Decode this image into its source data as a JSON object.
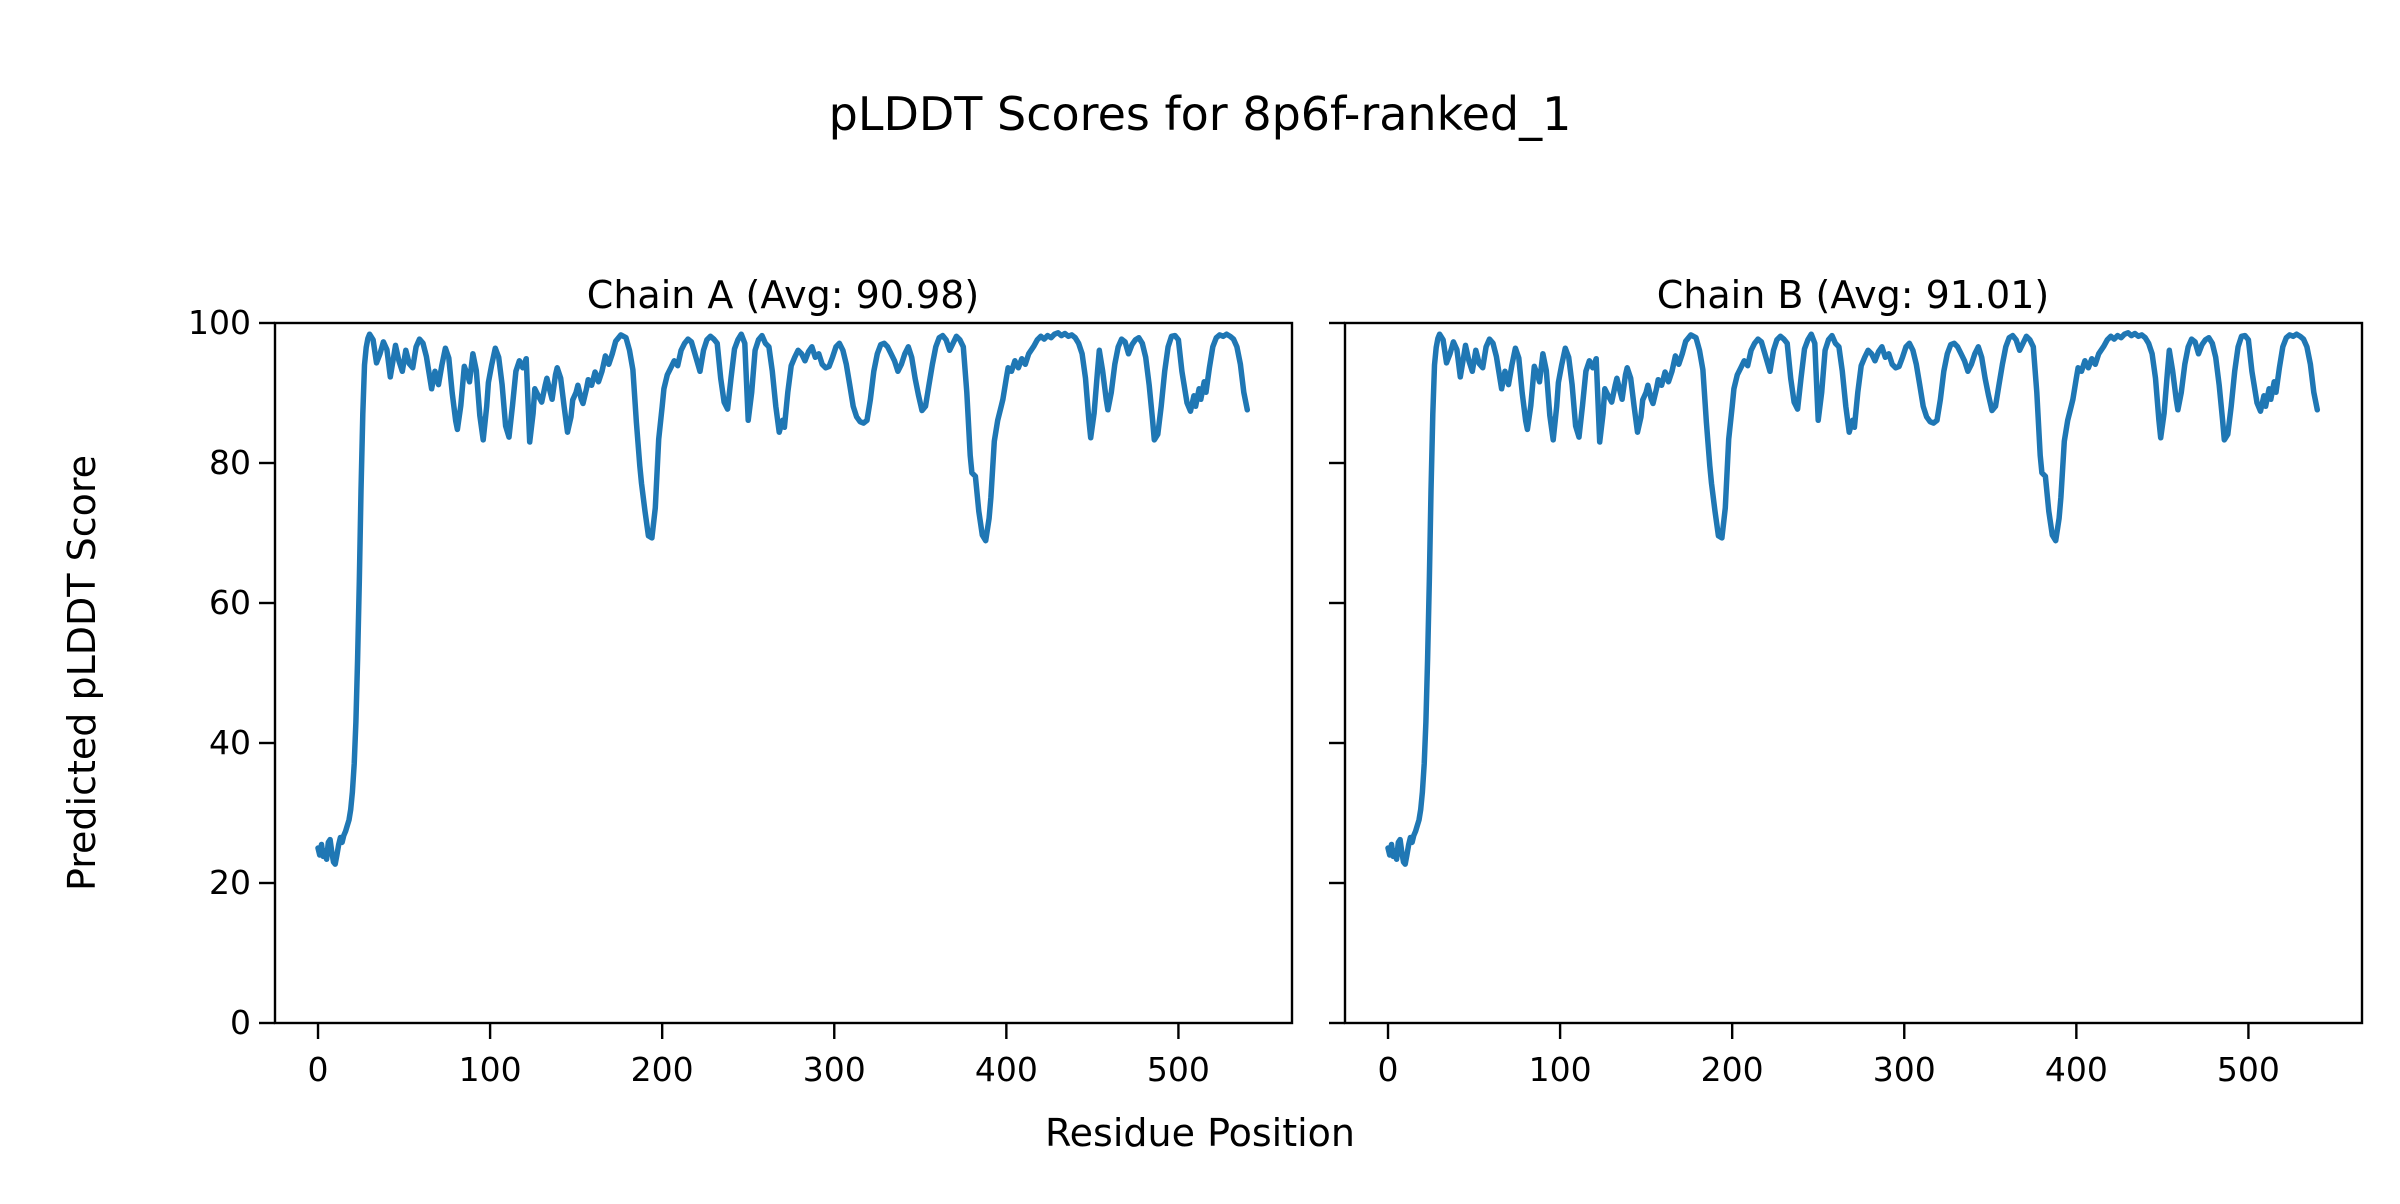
{
  "chart_data": {
    "type": "line",
    "suptitle": "pLDDT Scores for 8p6f-ranked_1",
    "xlabel": "Residue Position",
    "ylabel": "Predicted pLDDT Score",
    "xlim": [
      -25,
      566
    ],
    "ylim": [
      0,
      100
    ],
    "xticks": [
      0,
      100,
      200,
      300,
      400,
      500
    ],
    "yticks": [
      0,
      20,
      40,
      60,
      80,
      100
    ],
    "grid": false,
    "legend_position": "none",
    "line_color": "#1f77b4",
    "axis_color": "#000000",
    "background_color": "#ffffff",
    "subplots": [
      {
        "id": "chain-a",
        "title": "Chain A (Avg: 90.98)",
        "avg": 90.98
      },
      {
        "id": "chain-b",
        "title": "Chain B (Avg: 91.01)",
        "avg": 91.01
      }
    ],
    "points_note": "shared pLDDT profile [residue, score], drawn in both subplots",
    "points": [
      [
        0,
        25.0
      ],
      [
        1,
        24.0
      ],
      [
        2,
        25.5
      ],
      [
        3,
        23.8
      ],
      [
        4,
        24.6
      ],
      [
        5,
        23.4
      ],
      [
        6,
        25.8
      ],
      [
        7,
        26.2
      ],
      [
        8,
        24.4
      ],
      [
        9,
        23.0
      ],
      [
        10,
        22.7
      ],
      [
        11,
        24.0
      ],
      [
        12,
        25.5
      ],
      [
        13,
        26.5
      ],
      [
        14,
        25.8
      ],
      [
        15,
        26.8
      ],
      [
        16,
        27.4
      ],
      [
        17,
        28.2
      ],
      [
        18,
        29.0
      ],
      [
        19,
        30.5
      ],
      [
        20,
        33.0
      ],
      [
        21,
        37.0
      ],
      [
        22,
        43.0
      ],
      [
        23,
        52.0
      ],
      [
        24,
        63.0
      ],
      [
        25,
        76.0
      ],
      [
        26,
        87.0
      ],
      [
        27,
        94.0
      ],
      [
        28,
        96.5
      ],
      [
        29,
        97.8
      ],
      [
        30,
        98.4
      ],
      [
        32,
        97.6
      ],
      [
        34,
        94.3
      ],
      [
        36,
        95.6
      ],
      [
        38,
        97.3
      ],
      [
        40,
        96.2
      ],
      [
        42,
        92.3
      ],
      [
        44,
        95.2
      ],
      [
        45,
        96.8
      ],
      [
        47,
        94.6
      ],
      [
        49,
        93.1
      ],
      [
        51,
        96.1
      ],
      [
        53,
        94.2
      ],
      [
        55,
        93.6
      ],
      [
        57,
        96.6
      ],
      [
        59,
        97.7
      ],
      [
        61,
        97.1
      ],
      [
        63,
        95.2
      ],
      [
        66,
        90.6
      ],
      [
        68,
        93.1
      ],
      [
        70,
        91.2
      ],
      [
        72,
        94.0
      ],
      [
        74,
        96.4
      ],
      [
        76,
        95.0
      ],
      [
        78,
        90.0
      ],
      [
        80,
        86.0
      ],
      [
        81,
        84.8
      ],
      [
        83,
        88.2
      ],
      [
        85,
        93.8
      ],
      [
        87,
        92.5
      ],
      [
        88,
        91.6
      ],
      [
        90,
        95.6
      ],
      [
        92,
        93.2
      ],
      [
        94,
        86.8
      ],
      [
        96,
        83.3
      ],
      [
        98,
        88.1
      ],
      [
        99,
        91.5
      ],
      [
        101,
        94.1
      ],
      [
        103,
        96.4
      ],
      [
        105,
        95.1
      ],
      [
        107,
        91.2
      ],
      [
        109,
        85.3
      ],
      [
        111,
        83.7
      ],
      [
        113,
        88.2
      ],
      [
        115,
        93.1
      ],
      [
        117,
        94.6
      ],
      [
        119,
        93.6
      ],
      [
        121,
        94.9
      ],
      [
        123,
        83.0
      ],
      [
        125,
        87.1
      ],
      [
        126,
        90.6
      ],
      [
        128,
        89.6
      ],
      [
        130,
        88.7
      ],
      [
        132,
        91.1
      ],
      [
        133,
        92.1
      ],
      [
        135,
        90.1
      ],
      [
        136,
        89.1
      ],
      [
        138,
        92.6
      ],
      [
        139,
        93.6
      ],
      [
        141,
        92.1
      ],
      [
        143,
        88.1
      ],
      [
        145,
        84.4
      ],
      [
        147,
        86.6
      ],
      [
        148,
        89.0
      ],
      [
        150,
        90.1
      ],
      [
        151,
        91.1
      ],
      [
        153,
        89.1
      ],
      [
        154,
        88.5
      ],
      [
        156,
        90.6
      ],
      [
        157,
        91.9
      ],
      [
        159,
        91.1
      ],
      [
        161,
        93.0
      ],
      [
        163,
        91.6
      ],
      [
        165,
        93.1
      ],
      [
        167,
        95.3
      ],
      [
        169,
        94.1
      ],
      [
        171,
        95.6
      ],
      [
        173,
        97.4
      ],
      [
        176,
        98.3
      ],
      [
        179,
        97.9
      ],
      [
        181,
        96.1
      ],
      [
        183,
        93.3
      ],
      [
        185,
        85.8
      ],
      [
        187,
        79.6
      ],
      [
        188,
        77.1
      ],
      [
        190,
        73.1
      ],
      [
        192,
        69.6
      ],
      [
        194,
        69.3
      ],
      [
        196,
        73.6
      ],
      [
        198,
        83.4
      ],
      [
        200,
        88.1
      ],
      [
        201,
        90.6
      ],
      [
        203,
        92.6
      ],
      [
        205,
        93.6
      ],
      [
        207,
        94.6
      ],
      [
        209,
        93.9
      ],
      [
        211,
        96.1
      ],
      [
        213,
        97.1
      ],
      [
        215,
        97.7
      ],
      [
        217,
        97.3
      ],
      [
        219,
        95.6
      ],
      [
        222,
        93.1
      ],
      [
        224,
        96.1
      ],
      [
        226,
        97.6
      ],
      [
        228,
        98.1
      ],
      [
        230,
        97.7
      ],
      [
        232,
        97.1
      ],
      [
        234,
        92.1
      ],
      [
        236,
        88.7
      ],
      [
        238,
        87.7
      ],
      [
        240,
        92.1
      ],
      [
        242,
        96.3
      ],
      [
        244,
        97.6
      ],
      [
        246,
        98.4
      ],
      [
        248,
        97.1
      ],
      [
        250,
        86.1
      ],
      [
        252,
        90.1
      ],
      [
        254,
        96.1
      ],
      [
        256,
        97.6
      ],
      [
        258,
        98.2
      ],
      [
        260,
        97.1
      ],
      [
        262,
        96.6
      ],
      [
        264,
        93.1
      ],
      [
        266,
        88.1
      ],
      [
        268,
        84.4
      ],
      [
        270,
        86.1
      ],
      [
        271,
        85.1
      ],
      [
        273,
        90.1
      ],
      [
        275,
        93.9
      ],
      [
        277,
        95.1
      ],
      [
        279,
        96.1
      ],
      [
        281,
        95.6
      ],
      [
        283,
        94.6
      ],
      [
        285,
        95.9
      ],
      [
        287,
        96.6
      ],
      [
        289,
        95.1
      ],
      [
        291,
        95.6
      ],
      [
        293,
        94.1
      ],
      [
        295,
        93.6
      ],
      [
        297,
        93.8
      ],
      [
        299,
        95.1
      ],
      [
        301,
        96.6
      ],
      [
        303,
        97.1
      ],
      [
        305,
        96.1
      ],
      [
        307,
        94.1
      ],
      [
        309,
        91.1
      ],
      [
        311,
        88.1
      ],
      [
        313,
        86.6
      ],
      [
        315,
        85.9
      ],
      [
        317,
        85.7
      ],
      [
        319,
        86.1
      ],
      [
        321,
        89.1
      ],
      [
        323,
        93.1
      ],
      [
        325,
        95.6
      ],
      [
        327,
        96.9
      ],
      [
        329,
        97.1
      ],
      [
        331,
        96.6
      ],
      [
        333,
        95.6
      ],
      [
        335,
        94.6
      ],
      [
        337,
        93.1
      ],
      [
        339,
        94.1
      ],
      [
        341,
        95.6
      ],
      [
        343,
        96.6
      ],
      [
        345,
        95.1
      ],
      [
        347,
        92.1
      ],
      [
        349,
        89.6
      ],
      [
        351,
        87.5
      ],
      [
        353,
        88.1
      ],
      [
        355,
        91.1
      ],
      [
        357,
        94.1
      ],
      [
        359,
        96.6
      ],
      [
        361,
        97.9
      ],
      [
        363,
        98.2
      ],
      [
        365,
        97.6
      ],
      [
        367,
        96.1
      ],
      [
        369,
        97.1
      ],
      [
        371,
        98.1
      ],
      [
        373,
        97.6
      ],
      [
        375,
        96.6
      ],
      [
        377,
        90.1
      ],
      [
        379,
        81.1
      ],
      [
        380,
        78.6
      ],
      [
        382,
        78.1
      ],
      [
        384,
        73.1
      ],
      [
        386,
        69.7
      ],
      [
        388,
        68.9
      ],
      [
        390,
        72.1
      ],
      [
        391,
        75.1
      ],
      [
        393,
        83.1
      ],
      [
        395,
        86.1
      ],
      [
        397,
        88.1
      ],
      [
        398,
        89.1
      ],
      [
        400,
        92.1
      ],
      [
        401,
        93.6
      ],
      [
        403,
        93.1
      ],
      [
        405,
        94.6
      ],
      [
        407,
        93.6
      ],
      [
        409,
        94.9
      ],
      [
        411,
        94.1
      ],
      [
        413,
        95.6
      ],
      [
        416,
        96.7
      ],
      [
        418,
        97.6
      ],
      [
        420,
        98.1
      ],
      [
        422,
        97.7
      ],
      [
        424,
        98.2
      ],
      [
        426,
        97.9
      ],
      [
        428,
        98.4
      ],
      [
        430,
        98.6
      ],
      [
        432,
        98.2
      ],
      [
        434,
        98.5
      ],
      [
        436,
        98.1
      ],
      [
        438,
        98.3
      ],
      [
        440,
        97.9
      ],
      [
        442,
        97.1
      ],
      [
        444,
        95.6
      ],
      [
        446,
        92.1
      ],
      [
        448,
        86.1
      ],
      [
        449,
        83.6
      ],
      [
        451,
        87.1
      ],
      [
        453,
        93.1
      ],
      [
        454,
        96.1
      ],
      [
        456,
        93.1
      ],
      [
        458,
        89.1
      ],
      [
        459,
        87.6
      ],
      [
        461,
        90.1
      ],
      [
        463,
        94.1
      ],
      [
        465,
        96.6
      ],
      [
        467,
        97.7
      ],
      [
        469,
        97.3
      ],
      [
        471,
        95.6
      ],
      [
        473,
        96.9
      ],
      [
        475,
        97.6
      ],
      [
        477,
        97.9
      ],
      [
        479,
        97.1
      ],
      [
        481,
        95.1
      ],
      [
        483,
        91.1
      ],
      [
        485,
        86.1
      ],
      [
        486,
        83.3
      ],
      [
        488,
        84.1
      ],
      [
        490,
        88.1
      ],
      [
        492,
        93.1
      ],
      [
        494,
        96.6
      ],
      [
        496,
        98.1
      ],
      [
        498,
        98.2
      ],
      [
        500,
        97.6
      ],
      [
        502,
        93.1
      ],
      [
        504,
        90.1
      ],
      [
        505,
        88.6
      ],
      [
        507,
        87.4
      ],
      [
        509,
        89.6
      ],
      [
        510,
        88.1
      ],
      [
        512,
        90.6
      ],
      [
        513,
        89.1
      ],
      [
        515,
        91.6
      ],
      [
        516,
        90.1
      ],
      [
        518,
        93.6
      ],
      [
        520,
        96.6
      ],
      [
        522,
        97.9
      ],
      [
        524,
        98.3
      ],
      [
        526,
        98.1
      ],
      [
        528,
        98.4
      ],
      [
        530,
        98.1
      ],
      [
        532,
        97.7
      ],
      [
        534,
        96.6
      ],
      [
        536,
        94.1
      ],
      [
        538,
        90.1
      ],
      [
        540,
        87.6
      ]
    ]
  }
}
